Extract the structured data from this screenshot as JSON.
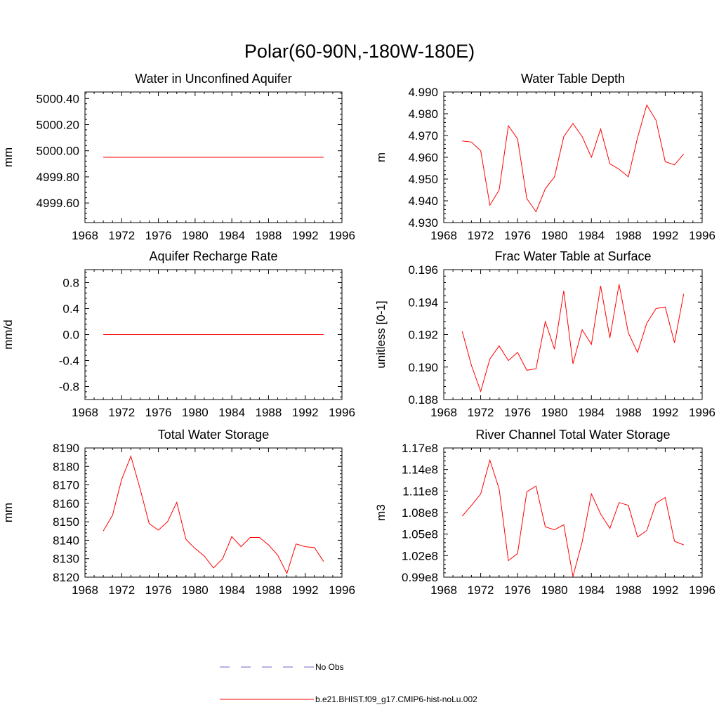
{
  "title": "Polar(60-90N,-180W-180E)",
  "legend": [
    {
      "label": "No Obs",
      "color": "#6a6ac8",
      "dash": true
    },
    {
      "label": "b.e21.BHIST.f09_g17.CMIP6-hist-noLu.002",
      "color": "#ff0000",
      "dash": false
    }
  ],
  "chart_data": [
    {
      "type": "line",
      "title": "Water in Unconfined Aquifer",
      "ylabel": "mm",
      "xlim": [
        1968,
        1996
      ],
      "ylim": [
        4999.45,
        5000.45
      ],
      "xticks": [
        1968,
        1972,
        1976,
        1980,
        1984,
        1988,
        1992,
        1996
      ],
      "xtick_labels": [
        "1968",
        "1972",
        "1976",
        "1980",
        "1984",
        "1988",
        "1992",
        "1996"
      ],
      "yticks": [
        4999.6,
        4999.8,
        5000.0,
        5000.2,
        5000.4
      ],
      "ytick_labels": [
        "4999.60",
        "4999.80",
        "5000.00",
        "5000.20",
        "5000.40"
      ],
      "series": [
        {
          "color": "#ff0000",
          "x": [
            1970,
            1971,
            1972,
            1973,
            1974,
            1975,
            1976,
            1977,
            1978,
            1979,
            1980,
            1981,
            1982,
            1983,
            1984,
            1985,
            1986,
            1987,
            1988,
            1989,
            1990,
            1991,
            1992,
            1993,
            1994
          ],
          "y": [
            4999.95,
            4999.95,
            4999.95,
            4999.95,
            4999.95,
            4999.95,
            4999.95,
            4999.95,
            4999.95,
            4999.95,
            4999.95,
            4999.95,
            4999.95,
            4999.95,
            4999.95,
            4999.95,
            4999.95,
            4999.95,
            4999.95,
            4999.95,
            4999.95,
            4999.95,
            4999.95,
            4999.95,
            4999.95
          ]
        }
      ]
    },
    {
      "type": "line",
      "title": "Water Table Depth",
      "ylabel": "m",
      "xlim": [
        1968,
        1996
      ],
      "ylim": [
        4.93,
        4.99
      ],
      "xticks": [
        1968,
        1972,
        1976,
        1980,
        1984,
        1988,
        1992,
        1996
      ],
      "xtick_labels": [
        "1968",
        "1972",
        "1976",
        "1980",
        "1984",
        "1988",
        "1992",
        "1996"
      ],
      "yticks": [
        4.93,
        4.94,
        4.95,
        4.96,
        4.97,
        4.98,
        4.99
      ],
      "ytick_labels": [
        "4.930",
        "4.940",
        "4.950",
        "4.960",
        "4.970",
        "4.980",
        "4.990"
      ],
      "series": [
        {
          "color": "#ff0000",
          "x": [
            1970,
            1971,
            1972,
            1973,
            1974,
            1975,
            1976,
            1977,
            1978,
            1979,
            1980,
            1981,
            1982,
            1983,
            1984,
            1985,
            1986,
            1987,
            1988,
            1989,
            1990,
            1991,
            1992,
            1993,
            1994
          ],
          "y": [
            4.9675,
            4.967,
            4.963,
            4.938,
            4.945,
            4.9745,
            4.9685,
            4.941,
            4.935,
            4.9455,
            4.951,
            4.9695,
            4.9755,
            4.9695,
            4.96,
            4.973,
            4.957,
            4.9545,
            4.951,
            4.969,
            4.984,
            4.977,
            4.958,
            4.9565,
            4.9615
          ]
        }
      ]
    },
    {
      "type": "line",
      "title": "Aquifer Recharge Rate",
      "ylabel": "mm/d",
      "xlim": [
        1968,
        1996
      ],
      "ylim": [
        -1.0,
        1.0
      ],
      "xticks": [
        1968,
        1972,
        1976,
        1980,
        1984,
        1988,
        1992,
        1996
      ],
      "xtick_labels": [
        "1968",
        "1972",
        "1976",
        "1980",
        "1984",
        "1988",
        "1992",
        "1996"
      ],
      "yticks": [
        -0.8,
        -0.4,
        0.0,
        0.4,
        0.8
      ],
      "ytick_labels": [
        "-0.8",
        "-0.4",
        "0.0",
        "0.4",
        "0.8"
      ],
      "series": [
        {
          "color": "#ff0000",
          "x": [
            1970,
            1971,
            1972,
            1973,
            1974,
            1975,
            1976,
            1977,
            1978,
            1979,
            1980,
            1981,
            1982,
            1983,
            1984,
            1985,
            1986,
            1987,
            1988,
            1989,
            1990,
            1991,
            1992,
            1993,
            1994
          ],
          "y": [
            0,
            0,
            0,
            0,
            0,
            0,
            0,
            0,
            0,
            0,
            0,
            0,
            0,
            0,
            0,
            0,
            0,
            0,
            0,
            0,
            0,
            0,
            0,
            0,
            0
          ]
        }
      ]
    },
    {
      "type": "line",
      "title": "Frac Water Table at Surface",
      "ylabel": "unitless [0-1]",
      "xlim": [
        1968,
        1996
      ],
      "ylim": [
        0.188,
        0.196
      ],
      "xticks": [
        1968,
        1972,
        1976,
        1980,
        1984,
        1988,
        1992,
        1996
      ],
      "xtick_labels": [
        "1968",
        "1972",
        "1976",
        "1980",
        "1984",
        "1988",
        "1992",
        "1996"
      ],
      "yticks": [
        0.188,
        0.19,
        0.192,
        0.194,
        0.196
      ],
      "ytick_labels": [
        "0.188",
        "0.190",
        "0.192",
        "0.194",
        "0.196"
      ],
      "series": [
        {
          "color": "#ff0000",
          "x": [
            1970,
            1971,
            1972,
            1973,
            1974,
            1975,
            1976,
            1977,
            1978,
            1979,
            1980,
            1981,
            1982,
            1983,
            1984,
            1985,
            1986,
            1987,
            1988,
            1989,
            1990,
            1991,
            1992,
            1993,
            1994
          ],
          "y": [
            0.1922,
            0.1901,
            0.1885,
            0.1905,
            0.1913,
            0.1904,
            0.1909,
            0.1898,
            0.1899,
            0.1928,
            0.1911,
            0.1947,
            0.1902,
            0.1923,
            0.1914,
            0.195,
            0.1918,
            0.1951,
            0.1921,
            0.1909,
            0.1927,
            0.1936,
            0.1937,
            0.1915,
            0.1945
          ]
        }
      ]
    },
    {
      "type": "line",
      "title": "Total Water Storage",
      "ylabel": "mm",
      "xlim": [
        1968,
        1996
      ],
      "ylim": [
        8120,
        8190
      ],
      "xticks": [
        1968,
        1972,
        1976,
        1980,
        1984,
        1988,
        1992,
        1996
      ],
      "xtick_labels": [
        "1968",
        "1972",
        "1976",
        "1980",
        "1984",
        "1988",
        "1992",
        "1996"
      ],
      "yticks": [
        8120,
        8130,
        8140,
        8150,
        8160,
        8170,
        8180,
        8190
      ],
      "ytick_labels": [
        "8120",
        "8130",
        "8140",
        "8150",
        "8160",
        "8170",
        "8180",
        "8190"
      ],
      "series": [
        {
          "color": "#ff0000",
          "x": [
            1970,
            1971,
            1972,
            1973,
            1974,
            1975,
            1976,
            1977,
            1978,
            1979,
            1980,
            1981,
            1982,
            1983,
            1984,
            1985,
            1986,
            1987,
            1988,
            1989,
            1990,
            1991,
            1992,
            1993,
            1994
          ],
          "y": [
            8145,
            8153.5,
            8173,
            8185.5,
            8168,
            8149,
            8145.5,
            8150,
            8160.5,
            8140.5,
            8135.5,
            8131.5,
            8125,
            8130,
            8142,
            8136.5,
            8141.5,
            8141.5,
            8137.5,
            8132,
            8122,
            8138,
            8136.5,
            8136,
            8128.5
          ]
        }
      ]
    },
    {
      "type": "line",
      "title": "River Channel Total Water Storage",
      "ylabel": "m3",
      "xlim": [
        1968,
        1996
      ],
      "ylim": [
        0.99,
        1.17
      ],
      "xticks": [
        1968,
        1972,
        1976,
        1980,
        1984,
        1988,
        1992,
        1996
      ],
      "xtick_labels": [
        "1968",
        "1972",
        "1976",
        "1980",
        "1984",
        "1988",
        "1992",
        "1996"
      ],
      "yticks": [
        0.99,
        1.02,
        1.05,
        1.08,
        1.11,
        1.14,
        1.17
      ],
      "ytick_labels": [
        "0.99e8",
        "1.02e8",
        "1.05e8",
        "1.08e8",
        "1.11e8",
        "1.14e8",
        "1.17e8"
      ],
      "series": [
        {
          "color": "#ff0000",
          "x": [
            1970,
            1971,
            1972,
            1973,
            1974,
            1975,
            1976,
            1977,
            1978,
            1979,
            1980,
            1981,
            1982,
            1983,
            1984,
            1985,
            1986,
            1987,
            1988,
            1989,
            1990,
            1991,
            1992,
            1993,
            1994
          ],
          "y": [
            1.075,
            1.09,
            1.106,
            1.153,
            1.113,
            1.013,
            1.023,
            1.109,
            1.117,
            1.06,
            1.056,
            1.063,
            0.991,
            1.039,
            1.106,
            1.078,
            1.058,
            1.094,
            1.09,
            1.046,
            1.055,
            1.093,
            1.101,
            1.04,
            1.035
          ]
        }
      ]
    }
  ]
}
